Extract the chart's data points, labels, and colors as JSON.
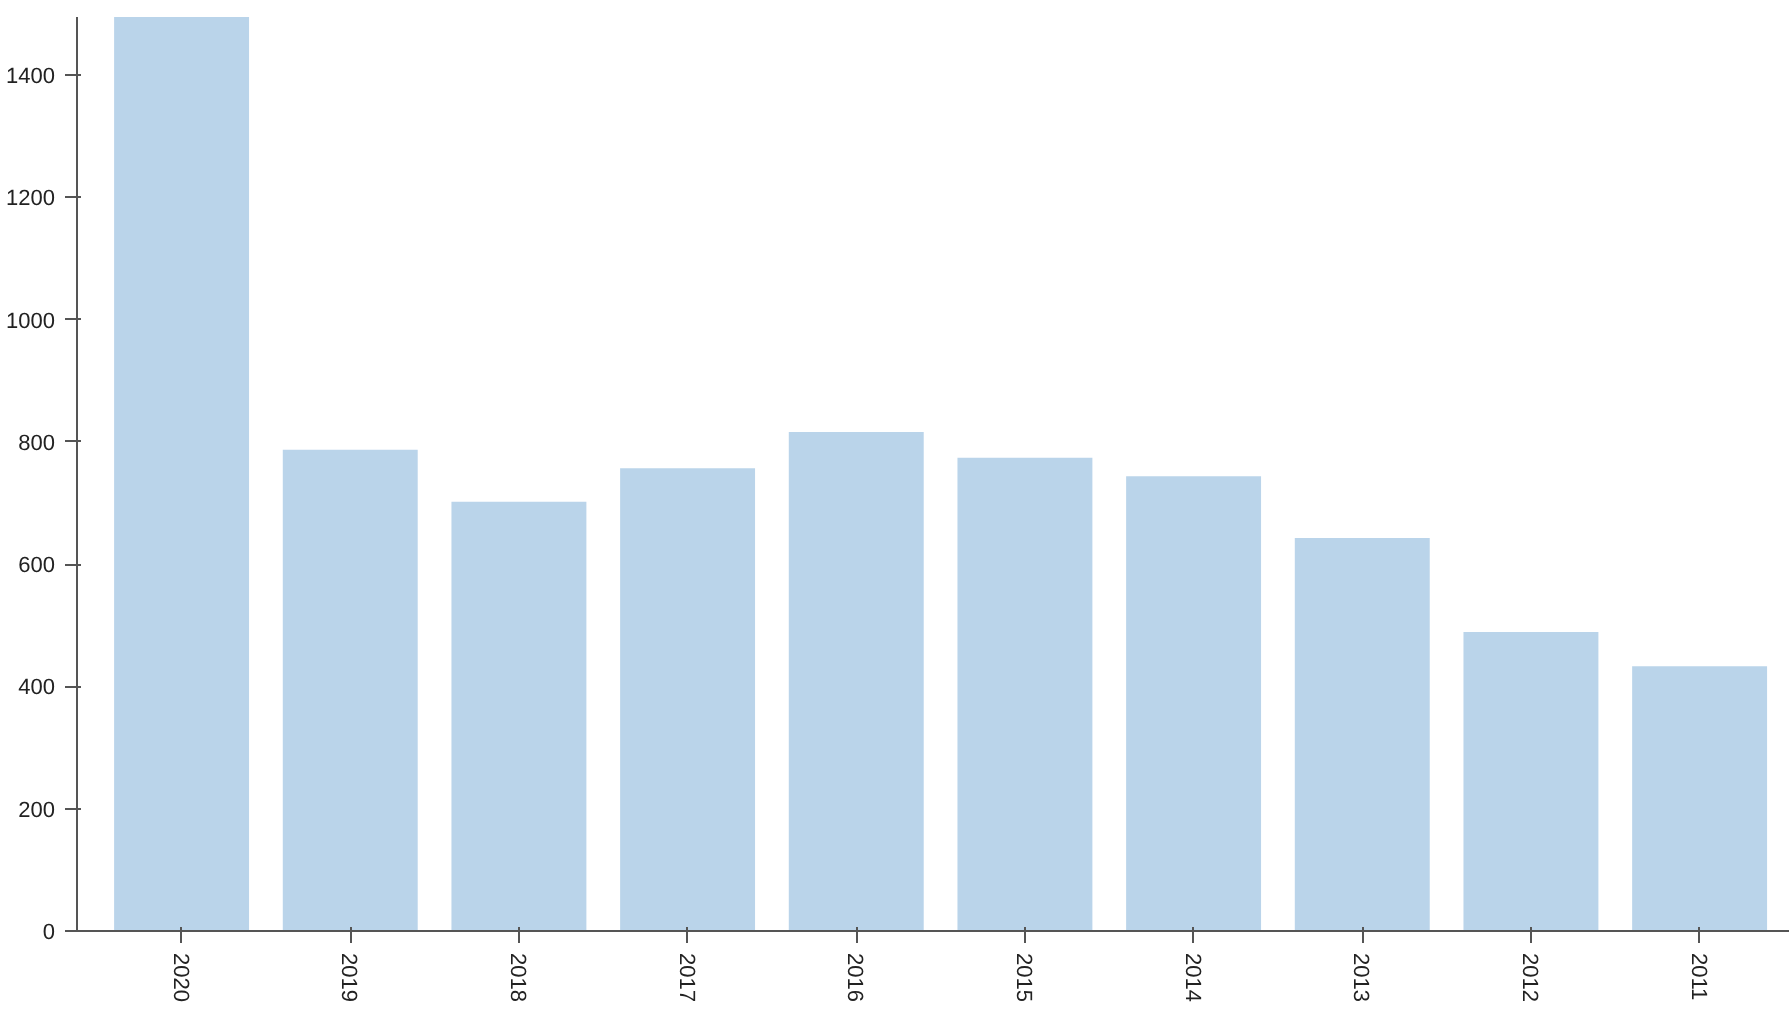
{
  "chart_data": {
    "type": "bar",
    "categories": [
      "2020",
      "2019",
      "2018",
      "2017",
      "2016",
      "2015",
      "2014",
      "2013",
      "2012",
      "2011"
    ],
    "values": [
      1495,
      787,
      702,
      757,
      816,
      774,
      744,
      643,
      489,
      433
    ],
    "color": "#bad4ea",
    "ylim": [
      0,
      1495
    ],
    "yticks": [
      0,
      200,
      400,
      600,
      800,
      1000,
      1200,
      1400
    ],
    "grid": false
  }
}
